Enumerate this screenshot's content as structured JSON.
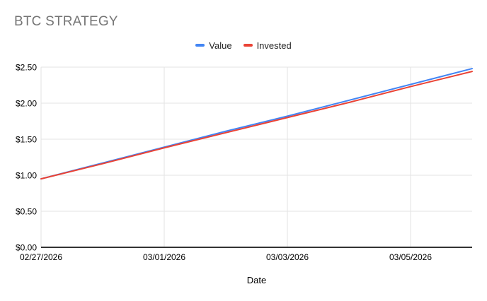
{
  "title": "BTC STRATEGY",
  "legend": {
    "items": [
      {
        "label": "Value",
        "color": "#4285F4"
      },
      {
        "label": "Invested",
        "color": "#EA4335"
      }
    ]
  },
  "x_axis_title": "Date",
  "chart_data": {
    "type": "line",
    "title": "BTC STRATEGY",
    "xlabel": "Date",
    "ylabel": "",
    "x": [
      "02/27/2026",
      "02/28/2026",
      "03/01/2026",
      "03/02/2026",
      "03/03/2026",
      "03/04/2026",
      "03/05/2026",
      "03/06/2026"
    ],
    "series": [
      {
        "name": "Value",
        "color": "#4285F4",
        "values": [
          0.95,
          1.17,
          1.39,
          1.61,
          1.82,
          2.04,
          2.26,
          2.48
        ]
      },
      {
        "name": "Invested",
        "color": "#EA4335",
        "values": [
          0.95,
          1.16,
          1.38,
          1.59,
          1.8,
          2.01,
          2.23,
          2.44
        ]
      }
    ],
    "ylim": [
      0,
      2.5
    ],
    "y_ticks": [
      0,
      0.5,
      1,
      1.5,
      2,
      2.5
    ],
    "y_tick_labels": [
      "$0.00",
      "$0.50",
      "$1.00",
      "$1.50",
      "$2.00",
      "$2.50"
    ],
    "x_tick_indices": [
      0,
      2,
      4,
      6
    ],
    "x_tick_labels": [
      "02/27/2026",
      "03/01/2026",
      "03/03/2026",
      "03/05/2026"
    ],
    "grid": true,
    "legend_position": "top",
    "colors": {
      "gridline": "#e3e3e3",
      "axis": "#333333",
      "tick_text": "#000000",
      "title_text": "#757575"
    }
  }
}
